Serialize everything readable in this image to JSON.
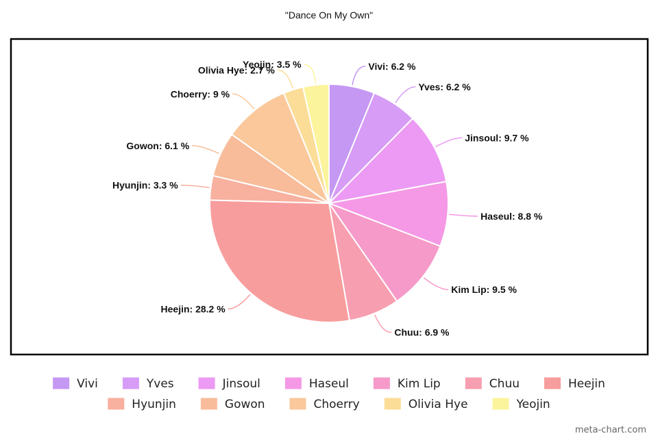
{
  "chart_data": {
    "type": "pie",
    "title": "\"Dance On My Own\"",
    "categories": [
      "Vivi",
      "Yves",
      "Jinsoul",
      "Haseul",
      "Kim Lip",
      "Chuu",
      "Heejin",
      "Hyunjin",
      "Gowon",
      "Choerry",
      "Olivia Hye",
      "Yeojin"
    ],
    "values": [
      6.2,
      6.2,
      9.7,
      8.8,
      9.5,
      6.9,
      28.2,
      3.3,
      6.1,
      9,
      2.7,
      3.5
    ],
    "labels": [
      "Vivi: 6.2 %",
      "Yves: 6.2 %",
      "Jinsoul: 9.7 %",
      "Haseul: 8.8 %",
      "Kim Lip: 9.5 %",
      "Chuu: 6.9 %",
      "Heejin: 28.2 %",
      "Hyunjin: 3.3 %",
      "Gowon: 6.1 %",
      "Choerry: 9 %",
      "Olivia Hye: 2.7 %",
      "Yeojin: 3.5 %"
    ],
    "colors": [
      "#c598f4",
      "#d79cf6",
      "#ec9af3",
      "#f599e6",
      "#f59ac9",
      "#f79eb0",
      "#f89d9d",
      "#f8b09f",
      "#f8bc9b",
      "#fac89b",
      "#fbdd98",
      "#fbf49c"
    ],
    "start_angle_deg": 0,
    "direction": "clockwise",
    "legend_position": "bottom",
    "frame": true
  },
  "credit": "meta-chart.com"
}
